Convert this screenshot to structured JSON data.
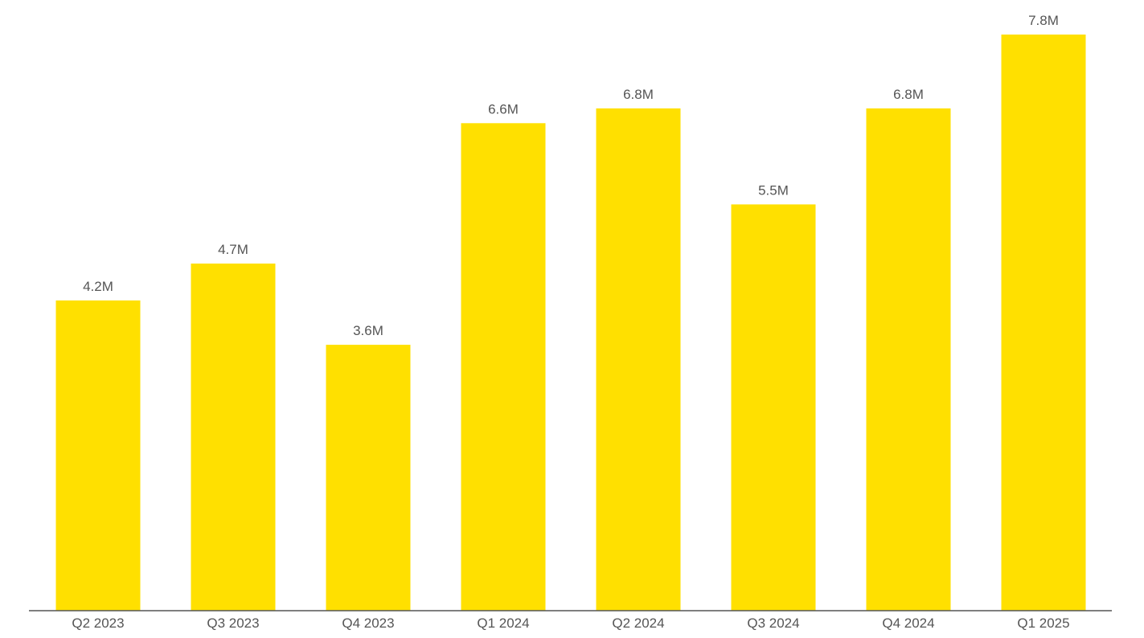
{
  "chart_data": {
    "type": "bar",
    "categories": [
      "Q2 2023",
      "Q3 2023",
      "Q4 2023",
      "Q1 2024",
      "Q2 2024",
      "Q3 2024",
      "Q4 2024",
      "Q1 2025"
    ],
    "values": [
      4.2,
      4.7,
      3.6,
      6.6,
      6.8,
      5.5,
      6.8,
      7.8
    ],
    "data_labels": [
      "4.2M",
      "4.7M",
      "3.6M",
      "6.6M",
      "6.8M",
      "5.5M",
      "6.8M",
      "7.8M"
    ],
    "ylim": [
      0,
      7.8
    ],
    "grid": false,
    "legend": "none",
    "bar_color": "#FFE000",
    "axis_color": "#555555"
  }
}
